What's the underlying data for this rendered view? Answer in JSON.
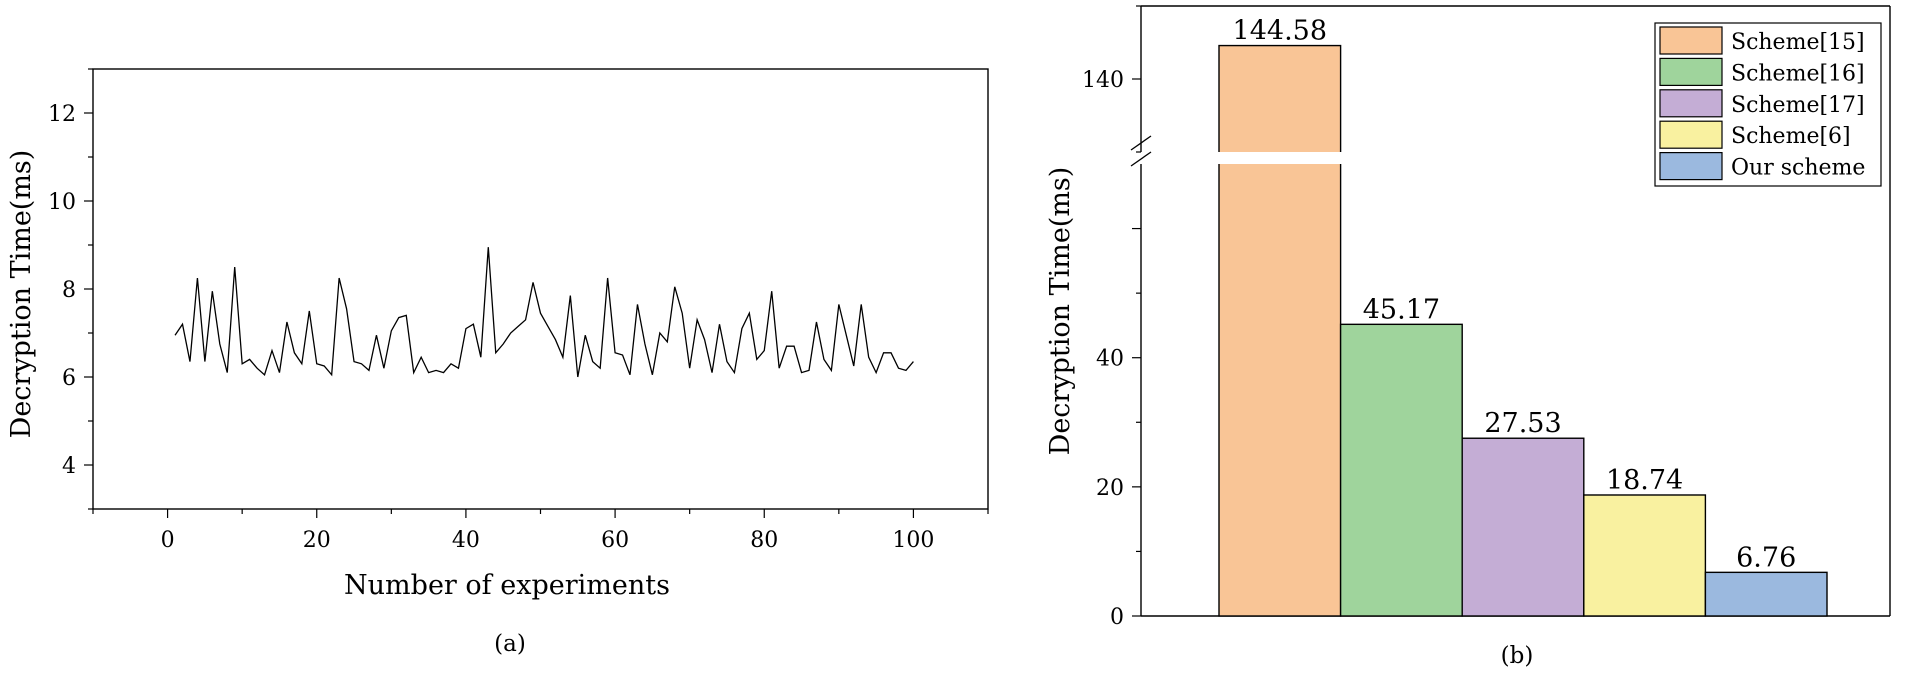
{
  "chart_data": [
    {
      "type": "line",
      "panel_label": "(a)",
      "xlabel": "Number of experiments",
      "ylabel": "Decryption Time(ms)",
      "xlim": [
        -10,
        110
      ],
      "ylim": [
        3,
        13
      ],
      "x_ticks": [
        0,
        20,
        40,
        60,
        80,
        100
      ],
      "y_ticks": [
        4,
        6,
        8,
        10,
        12
      ],
      "grid": false,
      "series": [
        {
          "x": [
            1,
            2,
            3,
            4,
            5,
            6,
            7,
            8,
            9,
            10,
            11,
            12,
            13,
            14,
            15,
            16,
            17,
            18,
            19,
            20,
            21,
            22,
            23,
            24,
            25,
            26,
            27,
            28,
            29,
            30,
            31,
            32,
            33,
            34,
            35,
            36,
            37,
            38,
            39,
            40,
            41,
            42,
            43,
            44,
            45,
            46,
            47,
            48,
            49,
            50,
            51,
            52,
            53,
            54,
            55,
            56,
            57,
            58,
            59,
            60,
            61,
            62,
            63,
            64,
            65,
            66,
            67,
            68,
            69,
            70,
            71,
            72,
            73,
            74,
            75,
            76,
            77,
            78,
            79,
            80,
            81,
            82,
            83,
            84,
            85,
            86,
            87,
            88,
            89,
            90,
            91,
            92,
            93,
            94,
            95,
            96,
            97,
            98,
            99,
            100
          ],
          "y": [
            6.95,
            7.2,
            6.35,
            8.25,
            6.35,
            7.95,
            6.75,
            6.1,
            8.5,
            6.3,
            6.4,
            6.2,
            6.05,
            6.6,
            6.1,
            7.25,
            6.55,
            6.3,
            7.5,
            6.3,
            6.25,
            6.05,
            8.25,
            7.55,
            6.35,
            6.3,
            6.15,
            6.95,
            6.2,
            7.05,
            7.35,
            7.4,
            6.1,
            6.45,
            6.1,
            6.15,
            6.1,
            6.3,
            6.2,
            7.1,
            7.2,
            6.45,
            8.95,
            6.55,
            6.75,
            7.0,
            7.15,
            7.3,
            8.15,
            7.45,
            7.15,
            6.85,
            6.45,
            7.85,
            6.0,
            6.95,
            6.35,
            6.2,
            8.25,
            6.55,
            6.5,
            6.05,
            7.65,
            6.75,
            6.05,
            7.0,
            6.8,
            8.05,
            7.45,
            6.2,
            7.3,
            6.85,
            6.1,
            7.2,
            6.35,
            6.1,
            7.1,
            7.45,
            6.4,
            6.6,
            7.95,
            6.2,
            6.7,
            6.7,
            6.1,
            6.15,
            7.25,
            6.4,
            6.15,
            7.65,
            6.95,
            6.25,
            7.65,
            6.45,
            6.1,
            6.55,
            6.55,
            6.2,
            6.15,
            6.35
          ]
        }
      ]
    },
    {
      "type": "bar",
      "panel_label": "(b)",
      "ylabel": "Decryption Time(ms)",
      "categories": [
        "Scheme[15]",
        "Scheme[16]",
        "Scheme[17]",
        "Scheme[6]",
        "Our scheme"
      ],
      "values": [
        144.58,
        45.17,
        27.53,
        18.74,
        6.76
      ],
      "value_labels": [
        "144.58",
        "45.17",
        "27.53",
        "18.74",
        "6.76"
      ],
      "colors": [
        "#F9C596",
        "#9FD49C",
        "#C4ADD5",
        "#F9F1A0",
        "#9BB9DF"
      ],
      "y_axis_break": true,
      "lower_segment_ylim": [
        0,
        70
      ],
      "upper_segment_ylim": [
        130,
        150
      ],
      "y_ticks_lower": [
        0,
        20,
        40
      ],
      "y_ticks_upper": [
        140
      ],
      "legend": {
        "placement": "top-right",
        "entries": [
          "Scheme[15]",
          "Scheme[16]",
          "Scheme[17]",
          "Scheme[6]",
          "Our scheme"
        ]
      },
      "grid": false
    }
  ]
}
